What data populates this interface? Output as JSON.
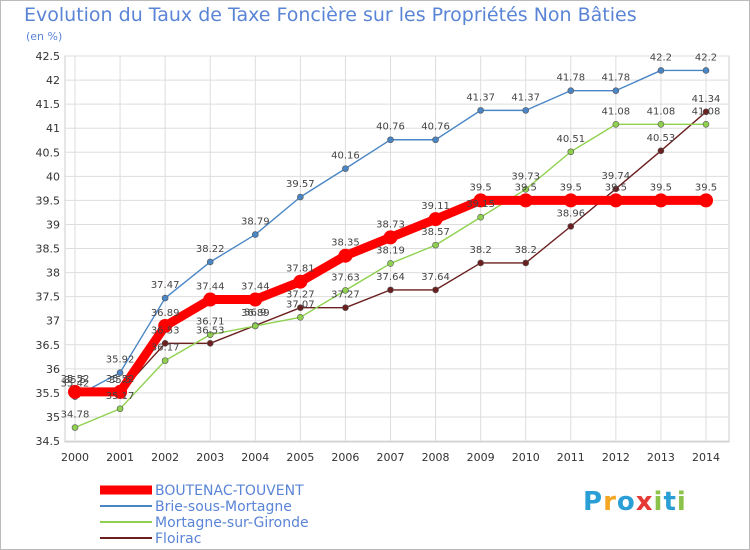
{
  "chart_data": {
    "type": "line",
    "title": "Evolution du Taux de Taxe Foncière sur les Propriétés Non Bâties",
    "ylabel": "(en %)",
    "xlabel": "",
    "x": [
      2000,
      2001,
      2002,
      2003,
      2004,
      2005,
      2006,
      2007,
      2008,
      2009,
      2010,
      2011,
      2012,
      2013,
      2014
    ],
    "x_tick_labels": [
      "2000",
      "2001",
      "2002",
      "2003",
      "2004",
      "2005",
      "2006",
      "2007",
      "2008",
      "2009",
      "2010",
      "2011",
      "2012",
      "2013",
      "2014"
    ],
    "ylim": [
      34.5,
      42.5
    ],
    "y_ticks": [
      34.5,
      35,
      35.5,
      36,
      36.5,
      37,
      37.5,
      38,
      38.5,
      39,
      39.5,
      40,
      40.5,
      41,
      41.5,
      42,
      42.5
    ],
    "y_tick_labels": [
      "34.5",
      "35",
      "35.5",
      "36",
      "36.5",
      "37",
      "37.5",
      "38",
      "38.5",
      "39",
      "39.5",
      "40",
      "40.5",
      "41",
      "41.5",
      "42",
      "42.5"
    ],
    "grid": true,
    "legend_position": "bottom-left",
    "series": [
      {
        "name": "BOUTENAC-TOUVENT",
        "color": "#ff0000",
        "values": [
          35.52,
          35.52,
          36.89,
          37.44,
          37.44,
          37.81,
          38.35,
          38.73,
          39.11,
          39.5,
          39.5,
          39.5,
          39.5,
          39.5,
          39.5
        ],
        "labels": [
          "35.52",
          "35.52",
          "36.89",
          "37.44",
          "37.44",
          "37.81",
          "38.35",
          "38.73",
          "39.11",
          "39.5",
          "39.5",
          "39.5",
          "39.5",
          "39.5",
          "39.5"
        ]
      },
      {
        "name": "Brie-sous-Mortagne",
        "color": "#4a86c5",
        "values": [
          35.42,
          35.92,
          37.47,
          38.22,
          38.79,
          39.57,
          40.16,
          40.76,
          40.76,
          41.37,
          41.37,
          41.78,
          41.78,
          42.2,
          42.2
        ],
        "labels": [
          "35.42",
          "35.92",
          "37.47",
          "38.22",
          "38.79",
          "39.57",
          "40.16",
          "40.76",
          "40.76",
          "41.37",
          "41.37",
          "41.78",
          "41.78",
          "42.2",
          "42.2"
        ]
      },
      {
        "name": "Mortagne-sur-Gironde",
        "color": "#8fd14f",
        "values": [
          34.78,
          35.17,
          36.17,
          36.71,
          36.89,
          37.07,
          37.63,
          38.19,
          38.57,
          39.15,
          39.73,
          40.51,
          41.08,
          41.08,
          41.08
        ],
        "labels": [
          "34.78",
          "35.17",
          "36.17",
          "36.71",
          "36.89",
          "37.07",
          "37.63",
          "38.19",
          "38.57",
          "39.15",
          "39.73",
          "40.51",
          "41.08",
          "41.08",
          "41.08"
        ]
      },
      {
        "name": "Floirac",
        "color": "#6b1f1f",
        "values": [
          35.5,
          35.5,
          36.53,
          36.53,
          36.9,
          37.27,
          37.27,
          37.64,
          37.64,
          38.2,
          38.2,
          38.96,
          39.74,
          40.53,
          41.34
        ],
        "labels": [
          "35.5",
          "35.5",
          "36.53",
          "36.53",
          "36.9",
          "37.27",
          "37.27",
          "37.64",
          "37.64",
          "38.2",
          "38.2",
          "38.96",
          "39.74",
          "40.53",
          "41.34"
        ]
      }
    ]
  },
  "brand": {
    "letters": [
      "P",
      "r",
      "o",
      "x",
      "i",
      "t",
      "i"
    ],
    "colors": [
      "#2a9fd6",
      "#f5a623",
      "#2a9fd6",
      "#e53935",
      "#8bc34a",
      "#2a9fd6",
      "#8bc34a"
    ]
  }
}
